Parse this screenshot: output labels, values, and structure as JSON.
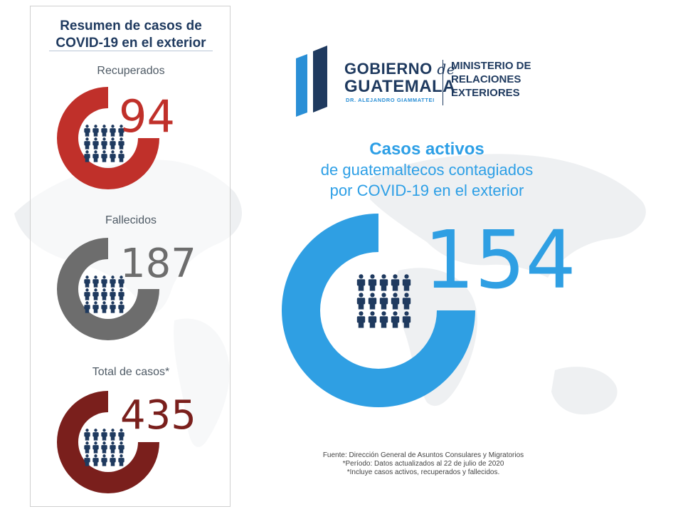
{
  "panel": {
    "title_line1": "Resumen de casos de",
    "title_line2": "COVID-19 en el exterior"
  },
  "logo": {
    "gobierno": "GOBIERNO",
    "de": "de",
    "guatemala": "GUATEMALA",
    "president": "DR. ALEJANDRO GIAMMATTEI",
    "ministerio_line1": "MINISTERIO DE",
    "ministerio_line2": "RELACIONES",
    "ministerio_line3": "EXTERIORES"
  },
  "headline": {
    "title": "Casos activos",
    "subtitle_line1": "de guatemaltecos contagiados",
    "subtitle_line2": "por COVID-19 en el exterior"
  },
  "footer": {
    "line1": "Fuente: Dirección General de Asuntos Consulares y Migratorios",
    "line2": "*Período: Datos actualizados al 22 de julio de 2020",
    "line3": "*Incluye casos activos, recuperados y fallecidos."
  },
  "colors": {
    "recuperados": "#c0302a",
    "fallecidos": "#6d6d6d",
    "total": "#7a1f1c",
    "activos": "#2f9fe3",
    "people": "#1f3a5f",
    "navy": "#1f3a5f"
  },
  "chart_data": [
    {
      "type": "donut",
      "title": "Recuperados",
      "value": 94
    },
    {
      "type": "donut",
      "title": "Fallecidos",
      "value": 187
    },
    {
      "type": "donut",
      "title": "Total de casos*",
      "value": 435
    },
    {
      "type": "donut",
      "title": "Casos activos",
      "value": 154
    }
  ]
}
